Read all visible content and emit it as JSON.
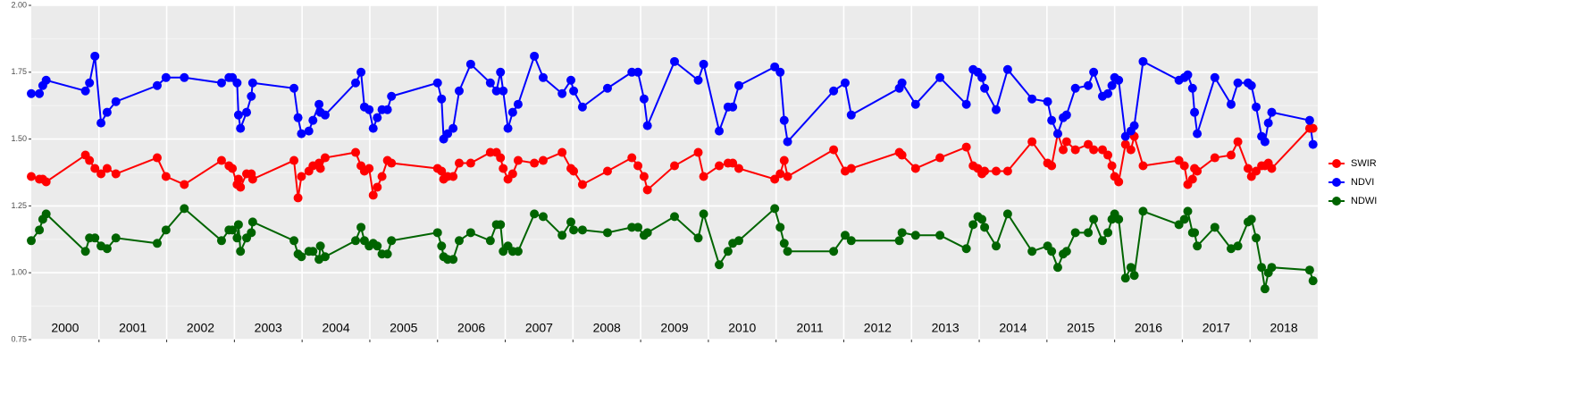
{
  "chart_data": {
    "type": "line",
    "x": [
      2000.0,
      2000.12,
      2000.17,
      2000.22,
      2000.8,
      2000.86,
      2000.94,
      2001.03,
      2001.12,
      2001.25,
      2001.86,
      2001.99,
      2002.26,
      2002.81,
      2002.92,
      2002.97,
      2003.04,
      2003.06,
      2003.09,
      2003.18,
      2003.25,
      2003.27,
      2003.88,
      2003.94,
      2003.99,
      2004.1,
      2004.16,
      2004.25,
      2004.27,
      2004.34,
      2004.79,
      2004.87,
      2004.92,
      2004.99,
      2005.05,
      2005.11,
      2005.18,
      2005.26,
      2005.32,
      2006.0,
      2006.06,
      2006.09,
      2006.15,
      2006.23,
      2006.32,
      2006.49,
      2006.78,
      2006.87,
      2006.93,
      2006.97,
      2007.04,
      2007.11,
      2007.19,
      2007.43,
      2007.56,
      2007.84,
      2007.97,
      2008.01,
      2008.14,
      2008.51,
      2008.87,
      2008.96,
      2009.05,
      2009.1,
      2009.5,
      2009.85,
      2009.93,
      2010.16,
      2010.29,
      2010.36,
      2010.45,
      2010.98,
      2011.06,
      2011.12,
      2011.17,
      2011.85,
      2012.02,
      2012.11,
      2012.82,
      2012.86,
      2013.06,
      2013.42,
      2013.81,
      2013.91,
      2013.98,
      2014.04,
      2014.08,
      2014.25,
      2014.42,
      2014.78,
      2015.01,
      2015.07,
      2015.16,
      2015.24,
      2015.29,
      2015.42,
      2015.61,
      2015.69,
      2015.82,
      2015.9,
      2015.96,
      2016.0,
      2016.06,
      2016.16,
      2016.24,
      2016.29,
      2016.42,
      2016.95,
      2017.03,
      2017.08,
      2017.15,
      2017.18,
      2017.22,
      2017.48,
      2017.72,
      2017.82,
      2017.97,
      2018.02,
      2018.09,
      2018.17,
      2018.22,
      2018.27,
      2018.32,
      2018.88,
      2018.93
    ],
    "series": [
      {
        "name": "SWIR",
        "color": "#ff0000",
        "values": [
          1.36,
          1.35,
          1.35,
          1.34,
          1.44,
          1.42,
          1.39,
          1.37,
          1.39,
          1.37,
          1.43,
          1.36,
          1.33,
          1.42,
          1.4,
          1.39,
          1.33,
          1.35,
          1.32,
          1.37,
          1.37,
          1.35,
          1.42,
          1.28,
          1.36,
          1.38,
          1.4,
          1.41,
          1.39,
          1.43,
          1.45,
          1.4,
          1.38,
          1.39,
          1.29,
          1.32,
          1.36,
          1.42,
          1.41,
          1.39,
          1.38,
          1.35,
          1.36,
          1.36,
          1.41,
          1.41,
          1.45,
          1.45,
          1.43,
          1.39,
          1.35,
          1.37,
          1.42,
          1.41,
          1.42,
          1.45,
          1.39,
          1.38,
          1.33,
          1.38,
          1.43,
          1.4,
          1.36,
          1.31,
          1.4,
          1.45,
          1.36,
          1.4,
          1.41,
          1.41,
          1.39,
          1.35,
          1.37,
          1.42,
          1.36,
          1.46,
          1.38,
          1.39,
          1.45,
          1.44,
          1.39,
          1.43,
          1.47,
          1.4,
          1.39,
          1.37,
          1.38,
          1.38,
          1.38,
          1.49,
          1.41,
          1.4,
          1.52,
          1.46,
          1.49,
          1.46,
          1.48,
          1.46,
          1.46,
          1.44,
          1.4,
          1.36,
          1.34,
          1.48,
          1.46,
          1.51,
          1.4,
          1.42,
          1.4,
          1.33,
          1.35,
          1.39,
          1.38,
          1.43,
          1.44,
          1.49,
          1.39,
          1.36,
          1.38,
          1.4,
          1.4,
          1.41,
          1.39,
          1.54,
          1.54
        ]
      },
      {
        "name": "NDVI",
        "color": "#0000ff",
        "values": [
          1.67,
          1.67,
          1.7,
          1.72,
          1.68,
          1.71,
          1.81,
          1.56,
          1.6,
          1.64,
          1.7,
          1.73,
          1.73,
          1.71,
          1.73,
          1.73,
          1.71,
          1.59,
          1.54,
          1.6,
          1.66,
          1.71,
          1.69,
          1.58,
          1.52,
          1.53,
          1.57,
          1.63,
          1.6,
          1.59,
          1.71,
          1.75,
          1.62,
          1.61,
          1.54,
          1.58,
          1.61,
          1.61,
          1.66,
          1.71,
          1.65,
          1.5,
          1.52,
          1.54,
          1.68,
          1.78,
          1.71,
          1.68,
          1.75,
          1.68,
          1.54,
          1.6,
          1.63,
          1.81,
          1.73,
          1.67,
          1.72,
          1.68,
          1.62,
          1.69,
          1.75,
          1.75,
          1.65,
          1.55,
          1.79,
          1.72,
          1.78,
          1.53,
          1.62,
          1.62,
          1.7,
          1.77,
          1.75,
          1.57,
          1.49,
          1.68,
          1.71,
          1.59,
          1.69,
          1.71,
          1.63,
          1.73,
          1.63,
          1.76,
          1.75,
          1.73,
          1.69,
          1.61,
          1.76,
          1.65,
          1.64,
          1.57,
          1.52,
          1.58,
          1.59,
          1.69,
          1.7,
          1.75,
          1.66,
          1.67,
          1.7,
          1.73,
          1.72,
          1.51,
          1.53,
          1.55,
          1.79,
          1.72,
          1.73,
          1.74,
          1.69,
          1.6,
          1.52,
          1.73,
          1.63,
          1.71,
          1.71,
          1.7,
          1.62,
          1.51,
          1.49,
          1.56,
          1.6,
          1.57,
          1.48
        ]
      },
      {
        "name": "NDWI",
        "color": "#006400",
        "values": [
          1.12,
          1.16,
          1.2,
          1.22,
          1.08,
          1.13,
          1.13,
          1.1,
          1.09,
          1.13,
          1.11,
          1.16,
          1.24,
          1.12,
          1.16,
          1.16,
          1.13,
          1.18,
          1.08,
          1.13,
          1.15,
          1.19,
          1.12,
          1.07,
          1.06,
          1.08,
          1.08,
          1.05,
          1.1,
          1.06,
          1.12,
          1.17,
          1.12,
          1.1,
          1.11,
          1.1,
          1.07,
          1.07,
          1.12,
          1.15,
          1.1,
          1.06,
          1.05,
          1.05,
          1.12,
          1.15,
          1.12,
          1.18,
          1.18,
          1.08,
          1.1,
          1.08,
          1.08,
          1.22,
          1.21,
          1.14,
          1.19,
          1.16,
          1.16,
          1.15,
          1.17,
          1.17,
          1.14,
          1.15,
          1.21,
          1.13,
          1.22,
          1.03,
          1.08,
          1.11,
          1.12,
          1.24,
          1.17,
          1.11,
          1.08,
          1.08,
          1.14,
          1.12,
          1.12,
          1.15,
          1.14,
          1.14,
          1.09,
          1.18,
          1.21,
          1.2,
          1.17,
          1.1,
          1.22,
          1.08,
          1.1,
          1.08,
          1.02,
          1.07,
          1.08,
          1.15,
          1.15,
          1.2,
          1.12,
          1.15,
          1.2,
          1.22,
          1.2,
          0.98,
          1.02,
          0.99,
          1.23,
          1.18,
          1.2,
          1.23,
          1.15,
          1.15,
          1.1,
          1.17,
          1.09,
          1.1,
          1.19,
          1.2,
          1.13,
          1.02,
          0.94,
          1.0,
          1.02,
          1.01,
          0.97
        ]
      }
    ],
    "annotations": [
      {
        "text": "2000",
        "x": 2000.5,
        "y": 0.79
      },
      {
        "text": "2001",
        "x": 2001.5,
        "y": 0.79
      },
      {
        "text": "2002",
        "x": 2002.5,
        "y": 0.79
      },
      {
        "text": "2003",
        "x": 2003.5,
        "y": 0.79
      },
      {
        "text": "2004",
        "x": 2004.5,
        "y": 0.79
      },
      {
        "text": "2005",
        "x": 2005.5,
        "y": 0.79
      },
      {
        "text": "2006",
        "x": 2006.5,
        "y": 0.79
      },
      {
        "text": "2007",
        "x": 2007.5,
        "y": 0.79
      },
      {
        "text": "2008",
        "x": 2008.5,
        "y": 0.79
      },
      {
        "text": "2009",
        "x": 2009.5,
        "y": 0.79
      },
      {
        "text": "2010",
        "x": 2010.5,
        "y": 0.79
      },
      {
        "text": "2011",
        "x": 2011.5,
        "y": 0.79
      },
      {
        "text": "2012",
        "x": 2012.5,
        "y": 0.79
      },
      {
        "text": "2013",
        "x": 2013.5,
        "y": 0.79
      },
      {
        "text": "2014",
        "x": 2014.5,
        "y": 0.79
      },
      {
        "text": "2015",
        "x": 2015.5,
        "y": 0.79
      },
      {
        "text": "2016",
        "x": 2016.5,
        "y": 0.79
      },
      {
        "text": "2017",
        "x": 2017.5,
        "y": 0.79
      },
      {
        "text": "2018",
        "x": 2018.5,
        "y": 0.79
      }
    ],
    "xlim": [
      2000,
      2019
    ],
    "xticks": [
      2001,
      2002,
      2003,
      2004,
      2005,
      2006,
      2007,
      2008,
      2009,
      2010,
      2011,
      2012,
      2013,
      2014,
      2015,
      2016,
      2017,
      2018
    ],
    "ylim": [
      0.75,
      2.0
    ],
    "yticks": [
      {
        "value": 0.75,
        "label": "0.75"
      },
      {
        "value": 1.0,
        "label": "1.00"
      },
      {
        "value": 1.25,
        "label": "1.25"
      },
      {
        "value": 1.5,
        "label": "1.50"
      },
      {
        "value": 1.75,
        "label": "1.75"
      },
      {
        "value": 2.0,
        "label": "2.00"
      }
    ],
    "grid": true,
    "legend": "right"
  }
}
